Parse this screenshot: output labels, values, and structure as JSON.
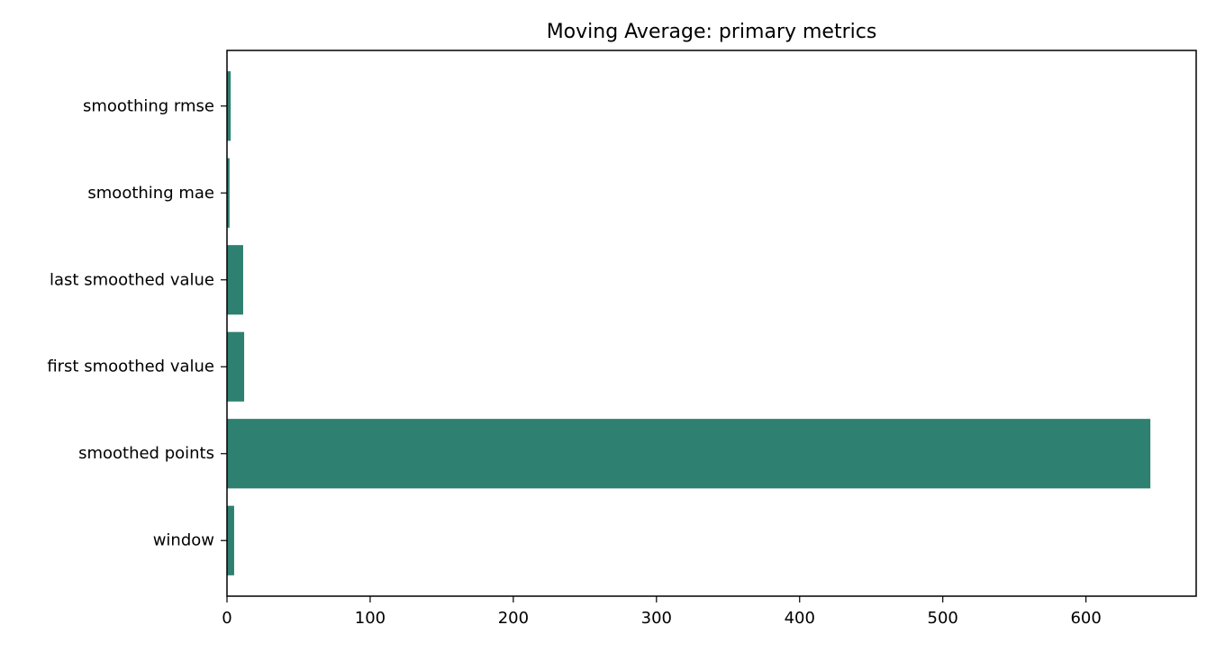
{
  "chart_data": {
    "type": "bar",
    "orientation": "horizontal",
    "title": "Moving Average: primary metrics",
    "xlabel": "",
    "ylabel": "",
    "categories": [
      "window",
      "smoothed points",
      "first smoothed value",
      "last smoothed value",
      "smoothing mae",
      "smoothing rmse"
    ],
    "values": [
      5,
      645,
      12,
      11.3,
      1.8,
      2.6
    ],
    "xlim": [
      0,
      677
    ],
    "xticks": [
      0,
      100,
      200,
      300,
      400,
      500,
      600
    ],
    "grid": false,
    "legend": "none",
    "bar_color": "#2e8070"
  }
}
